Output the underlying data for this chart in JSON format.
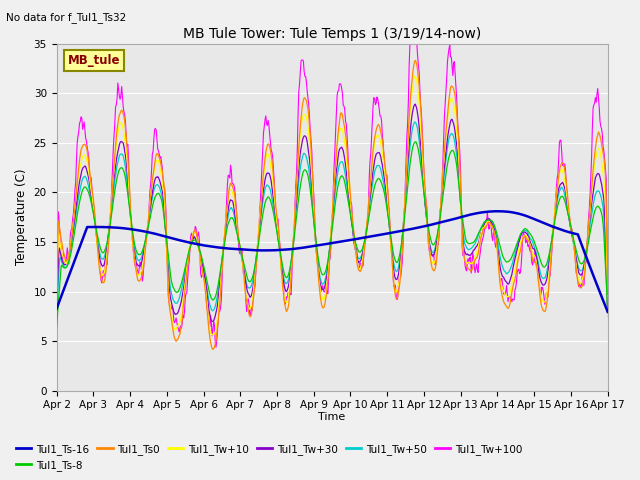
{
  "title": "MB Tule Tower: Tule Temps 1 (3/19/14-now)",
  "no_data_text": "No data for f_Tul1_Ts32",
  "xlabel": "Time",
  "ylabel": "Temperature (C)",
  "ylim": [
    0,
    35
  ],
  "x_tick_labels": [
    "Apr 2",
    "Apr 3",
    "Apr 4",
    "Apr 5",
    "Apr 6",
    "Apr 7",
    "Apr 8",
    "Apr 9",
    "Apr 10",
    "Apr 11",
    "Apr 12",
    "Apr 13",
    "Apr 14",
    "Apr 15",
    "Apr 16",
    "Apr 17"
  ],
  "x_tick_positions": [
    0,
    1,
    2,
    3,
    4,
    5,
    6,
    7,
    8,
    9,
    10,
    11,
    12,
    13,
    14,
    15
  ],
  "series": {
    "Tul1_Ts-16": {
      "color": "#0000cc",
      "lw": 1.5
    },
    "Tul1_Ts-8": {
      "color": "#00cc00",
      "lw": 1.0
    },
    "Tul1_Ts0": {
      "color": "#ff8800",
      "lw": 1.0
    },
    "Tul1_Tw+10": {
      "color": "#ffff00",
      "lw": 1.0
    },
    "Tul1_Tw+30": {
      "color": "#8800cc",
      "lw": 1.0
    },
    "Tul1_Tw+50": {
      "color": "#00cccc",
      "lw": 1.0
    },
    "Tul1_Tw+100": {
      "color": "#ff00ff",
      "lw": 1.0
    }
  },
  "legend_box_label": "MB_tule",
  "legend_box_color": "#ffff99",
  "legend_box_border": "#888800",
  "bg_color": "#e8e8e8",
  "grid_color": "#ffffff",
  "fig_bg": "#f0f0f0"
}
